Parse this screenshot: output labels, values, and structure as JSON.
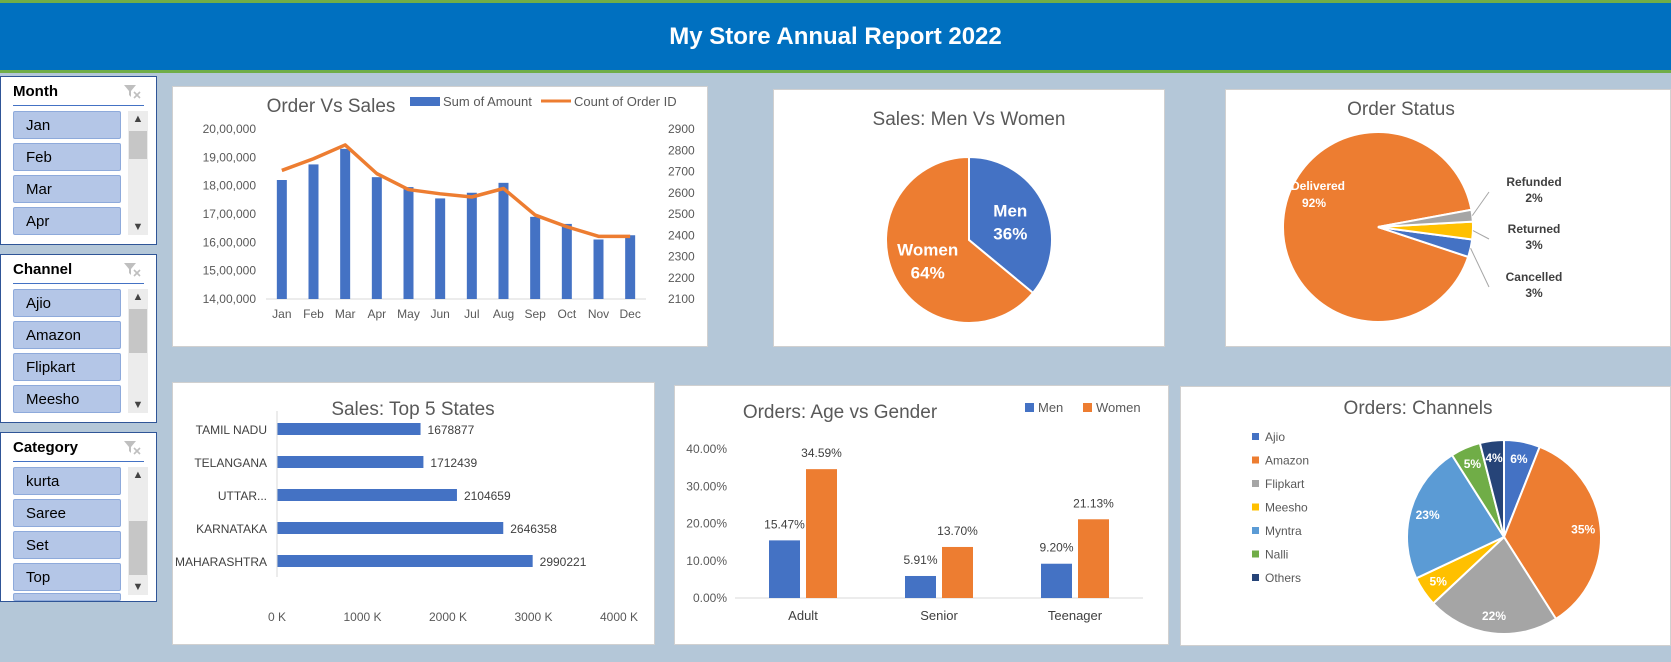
{
  "header": {
    "title": "My Store Annual Report 2022"
  },
  "colors": {
    "blue": "#4472c4",
    "orange": "#ed7d31",
    "gray": "#a5a5a5",
    "yellow": "#ffc000",
    "lightblue": "#5b9bd5",
    "green": "#70ad47",
    "navy": "#264478",
    "banner": "#0070c0"
  },
  "slicers": {
    "month": {
      "title": "Month",
      "items": [
        "Jan",
        "Feb",
        "Mar",
        "Apr"
      ]
    },
    "channel": {
      "title": "Channel",
      "items": [
        "Ajio",
        "Amazon",
        "Flipkart",
        "Meesho"
      ]
    },
    "category": {
      "title": "Category",
      "items": [
        "kurta",
        "Saree",
        "Set",
        "Top"
      ]
    }
  },
  "chart_data": [
    {
      "id": "order_vs_sales",
      "type": "bar+line",
      "title": "Order Vs Sales",
      "categories": [
        "Jan",
        "Feb",
        "Mar",
        "Apr",
        "May",
        "Jun",
        "Jul",
        "Aug",
        "Sep",
        "Oct",
        "Nov",
        "Dec"
      ],
      "series": [
        {
          "name": "Sum of Amount",
          "type": "bar",
          "axis": "left",
          "values": [
            1820000,
            1875000,
            1930000,
            1830000,
            1795000,
            1755000,
            1775000,
            1810000,
            1690000,
            1665000,
            1610000,
            1625000
          ]
        },
        {
          "name": "Count of Order ID",
          "type": "line",
          "axis": "right",
          "values": [
            2705,
            2760,
            2825,
            2690,
            2615,
            2595,
            2580,
            2620,
            2495,
            2440,
            2395,
            2395
          ]
        }
      ],
      "ylim_left": [
        1400000,
        2000000
      ],
      "ylim_right": [
        2100,
        2900
      ],
      "left_ticks": [
        "14,00,000",
        "15,00,000",
        "16,00,000",
        "17,00,000",
        "18,00,000",
        "19,00,000",
        "20,00,000"
      ],
      "right_ticks": [
        "2100",
        "2200",
        "2300",
        "2400",
        "2500",
        "2600",
        "2700",
        "2800",
        "2900"
      ],
      "legend": "top-right"
    },
    {
      "id": "sales_men_women",
      "type": "pie",
      "title": "Sales: Men Vs Women",
      "slices": [
        {
          "label": "Men",
          "value": 36,
          "pct": "36%"
        },
        {
          "label": "Women",
          "value": 64,
          "pct": "64%"
        }
      ]
    },
    {
      "id": "order_status",
      "type": "pie",
      "title": "Order Status",
      "slices": [
        {
          "label": "Delivered",
          "value": 92,
          "pct": "92%"
        },
        {
          "label": "Cancelled",
          "value": 3,
          "pct": "3%"
        },
        {
          "label": "Returned",
          "value": 3,
          "pct": "3%"
        },
        {
          "label": "Refunded",
          "value": 2,
          "pct": "2%"
        }
      ]
    },
    {
      "id": "top5_states",
      "type": "bar",
      "orientation": "horizontal",
      "title": "Sales: Top 5 States",
      "categories": [
        "TAMIL NADU",
        "TELANGANA",
        "UTTAR...",
        "KARNATAKA",
        "MAHARASHTRA"
      ],
      "values": [
        1678877,
        1712439,
        2104659,
        2646358,
        2990221
      ],
      "value_labels": [
        "1678877",
        "1712439",
        "2104659",
        "2646358",
        "2990221"
      ],
      "xlim": [
        0,
        4000000
      ],
      "x_ticks": [
        "0 K",
        "1000 K",
        "2000 K",
        "3000 K",
        "4000 K"
      ]
    },
    {
      "id": "age_vs_gender",
      "type": "bar",
      "title": "Orders: Age vs Gender",
      "categories": [
        "Adult",
        "Senior",
        "Teenager"
      ],
      "series": [
        {
          "name": "Men",
          "values": [
            15.47,
            5.91,
            9.2
          ],
          "labels": [
            "15.47%",
            "5.91%",
            "9.20%"
          ]
        },
        {
          "name": "Women",
          "values": [
            34.59,
            13.7,
            21.13
          ],
          "labels": [
            "34.59%",
            "13.70%",
            "21.13%"
          ]
        }
      ],
      "ylim": [
        0,
        40
      ],
      "y_ticks": [
        "0.00%",
        "10.00%",
        "20.00%",
        "30.00%",
        "40.00%"
      ],
      "legend": "top-right"
    },
    {
      "id": "orders_channels",
      "type": "pie",
      "title": "Orders: Channels",
      "slices": [
        {
          "label": "Ajio",
          "value": 6,
          "pct": "6%"
        },
        {
          "label": "Amazon",
          "value": 35,
          "pct": "35%"
        },
        {
          "label": "Flipkart",
          "value": 22,
          "pct": "22%"
        },
        {
          "label": "Meesho",
          "value": 5,
          "pct": "5%"
        },
        {
          "label": "Myntra",
          "value": 23,
          "pct": "23%"
        },
        {
          "label": "Nalli",
          "value": 5,
          "pct": "5%"
        },
        {
          "label": "Others",
          "value": 4,
          "pct": "4%"
        }
      ],
      "legend": "left"
    }
  ]
}
